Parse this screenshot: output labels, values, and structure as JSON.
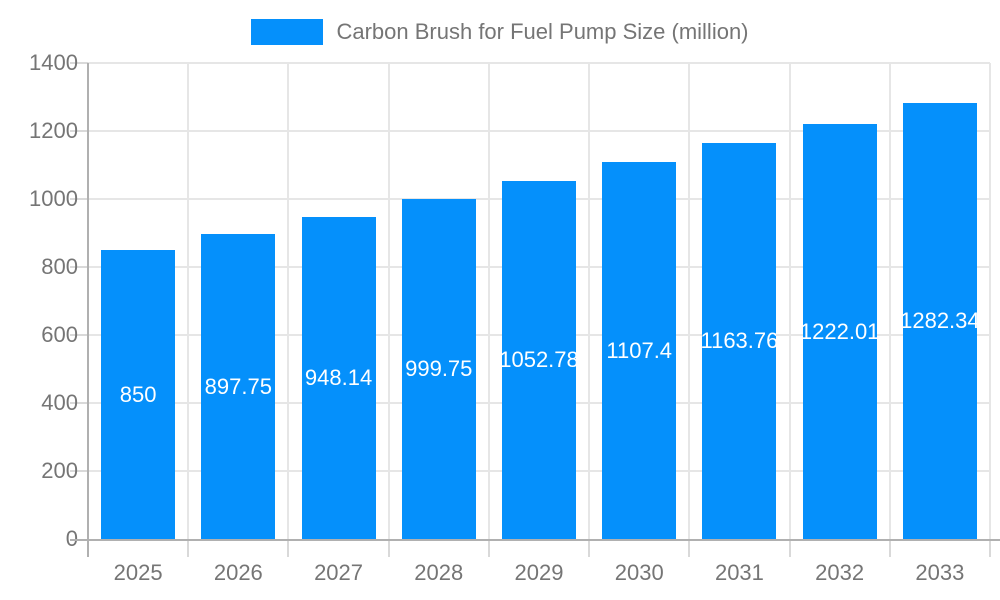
{
  "legend": {
    "label": "Carbon Brush for Fuel Pump Size (million)",
    "swatch_color": "#0590fb"
  },
  "chart_data": {
    "type": "bar",
    "title": "Carbon Brush for Fuel Pump Size (million)",
    "series_name": "Carbon Brush for Fuel Pump Size (million)",
    "categories": [
      "2025",
      "2026",
      "2027",
      "2028",
      "2029",
      "2030",
      "2031",
      "2032",
      "2033"
    ],
    "values": [
      850,
      897.75,
      948.14,
      999.75,
      1052.78,
      1107.4,
      1163.76,
      1222.01,
      1282.34
    ],
    "value_labels": [
      "850",
      "897.75",
      "948.14",
      "999.75",
      "1052.78",
      "1107.4",
      "1163.76",
      "1222.01",
      "1282.34"
    ],
    "xlabel": "",
    "ylabel": "",
    "ylim": [
      0,
      1400
    ],
    "ytick_step": 200,
    "ytick_labels": [
      "0",
      "200",
      "400",
      "600",
      "800",
      "1000",
      "1200",
      "1400"
    ],
    "grid": true,
    "legend_position": "top"
  },
  "colors": {
    "bar": "#0590fb",
    "bar_value_text": "#ffffff",
    "axis_line": "#b0b0b0",
    "grid_line": "#e6e6e6",
    "tick_mark": "#d9d9d9",
    "tick_text": "#757575",
    "legend_text": "#757575",
    "background": "#ffffff"
  }
}
